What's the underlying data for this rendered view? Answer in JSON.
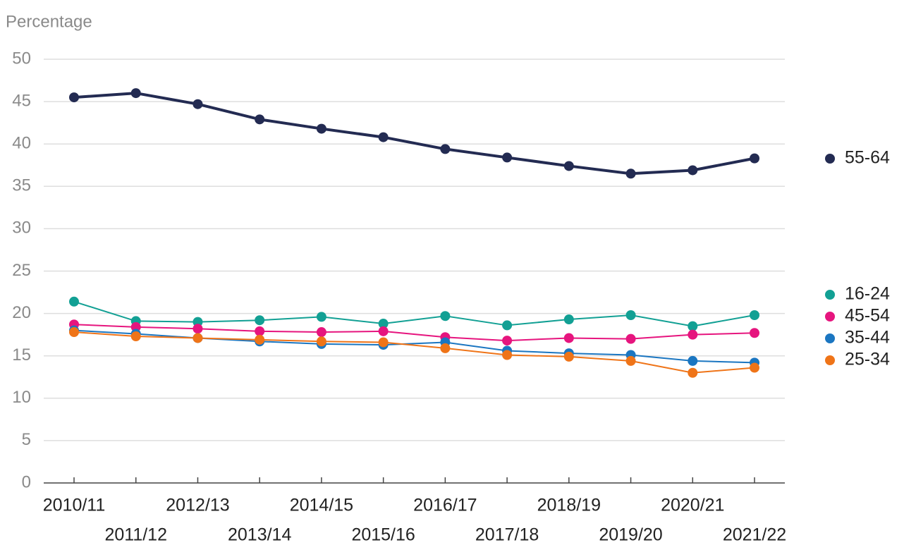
{
  "chart_data": {
    "type": "line",
    "y_label": "Percentage",
    "categories": [
      "2010/11",
      "2011/12",
      "2012/13",
      "2013/14",
      "2014/15",
      "2015/16",
      "2016/17",
      "2017/18",
      "2018/19",
      "2019/20",
      "2020/21",
      "2021/22"
    ],
    "series": [
      {
        "name": "55-64",
        "color": "#232b52",
        "values": [
          45.5,
          46.0,
          44.7,
          42.9,
          41.8,
          40.8,
          39.4,
          38.4,
          37.4,
          36.5,
          36.9,
          38.3
        ]
      },
      {
        "name": "16-24",
        "color": "#12a094",
        "values": [
          21.4,
          19.1,
          19.0,
          19.2,
          19.6,
          18.8,
          19.7,
          18.6,
          19.3,
          19.8,
          18.5,
          19.8
        ]
      },
      {
        "name": "45-54",
        "color": "#e6157e",
        "values": [
          18.7,
          18.4,
          18.2,
          17.9,
          17.8,
          17.9,
          17.2,
          16.8,
          17.1,
          17.0,
          17.5,
          17.7
        ]
      },
      {
        "name": "35-44",
        "color": "#1b76c1",
        "values": [
          18.0,
          17.6,
          17.1,
          16.7,
          16.4,
          16.3,
          16.6,
          15.6,
          15.3,
          15.1,
          14.4,
          14.2
        ]
      },
      {
        "name": "25-34",
        "color": "#ef7418",
        "values": [
          17.8,
          17.3,
          17.1,
          16.9,
          16.7,
          16.6,
          15.9,
          15.1,
          14.9,
          14.4,
          13.0,
          13.6
        ]
      }
    ],
    "ylim": [
      0,
      50
    ],
    "yticks": [
      0,
      5,
      10,
      15,
      20,
      25,
      30,
      35,
      40,
      45,
      50
    ],
    "grid": true
  }
}
